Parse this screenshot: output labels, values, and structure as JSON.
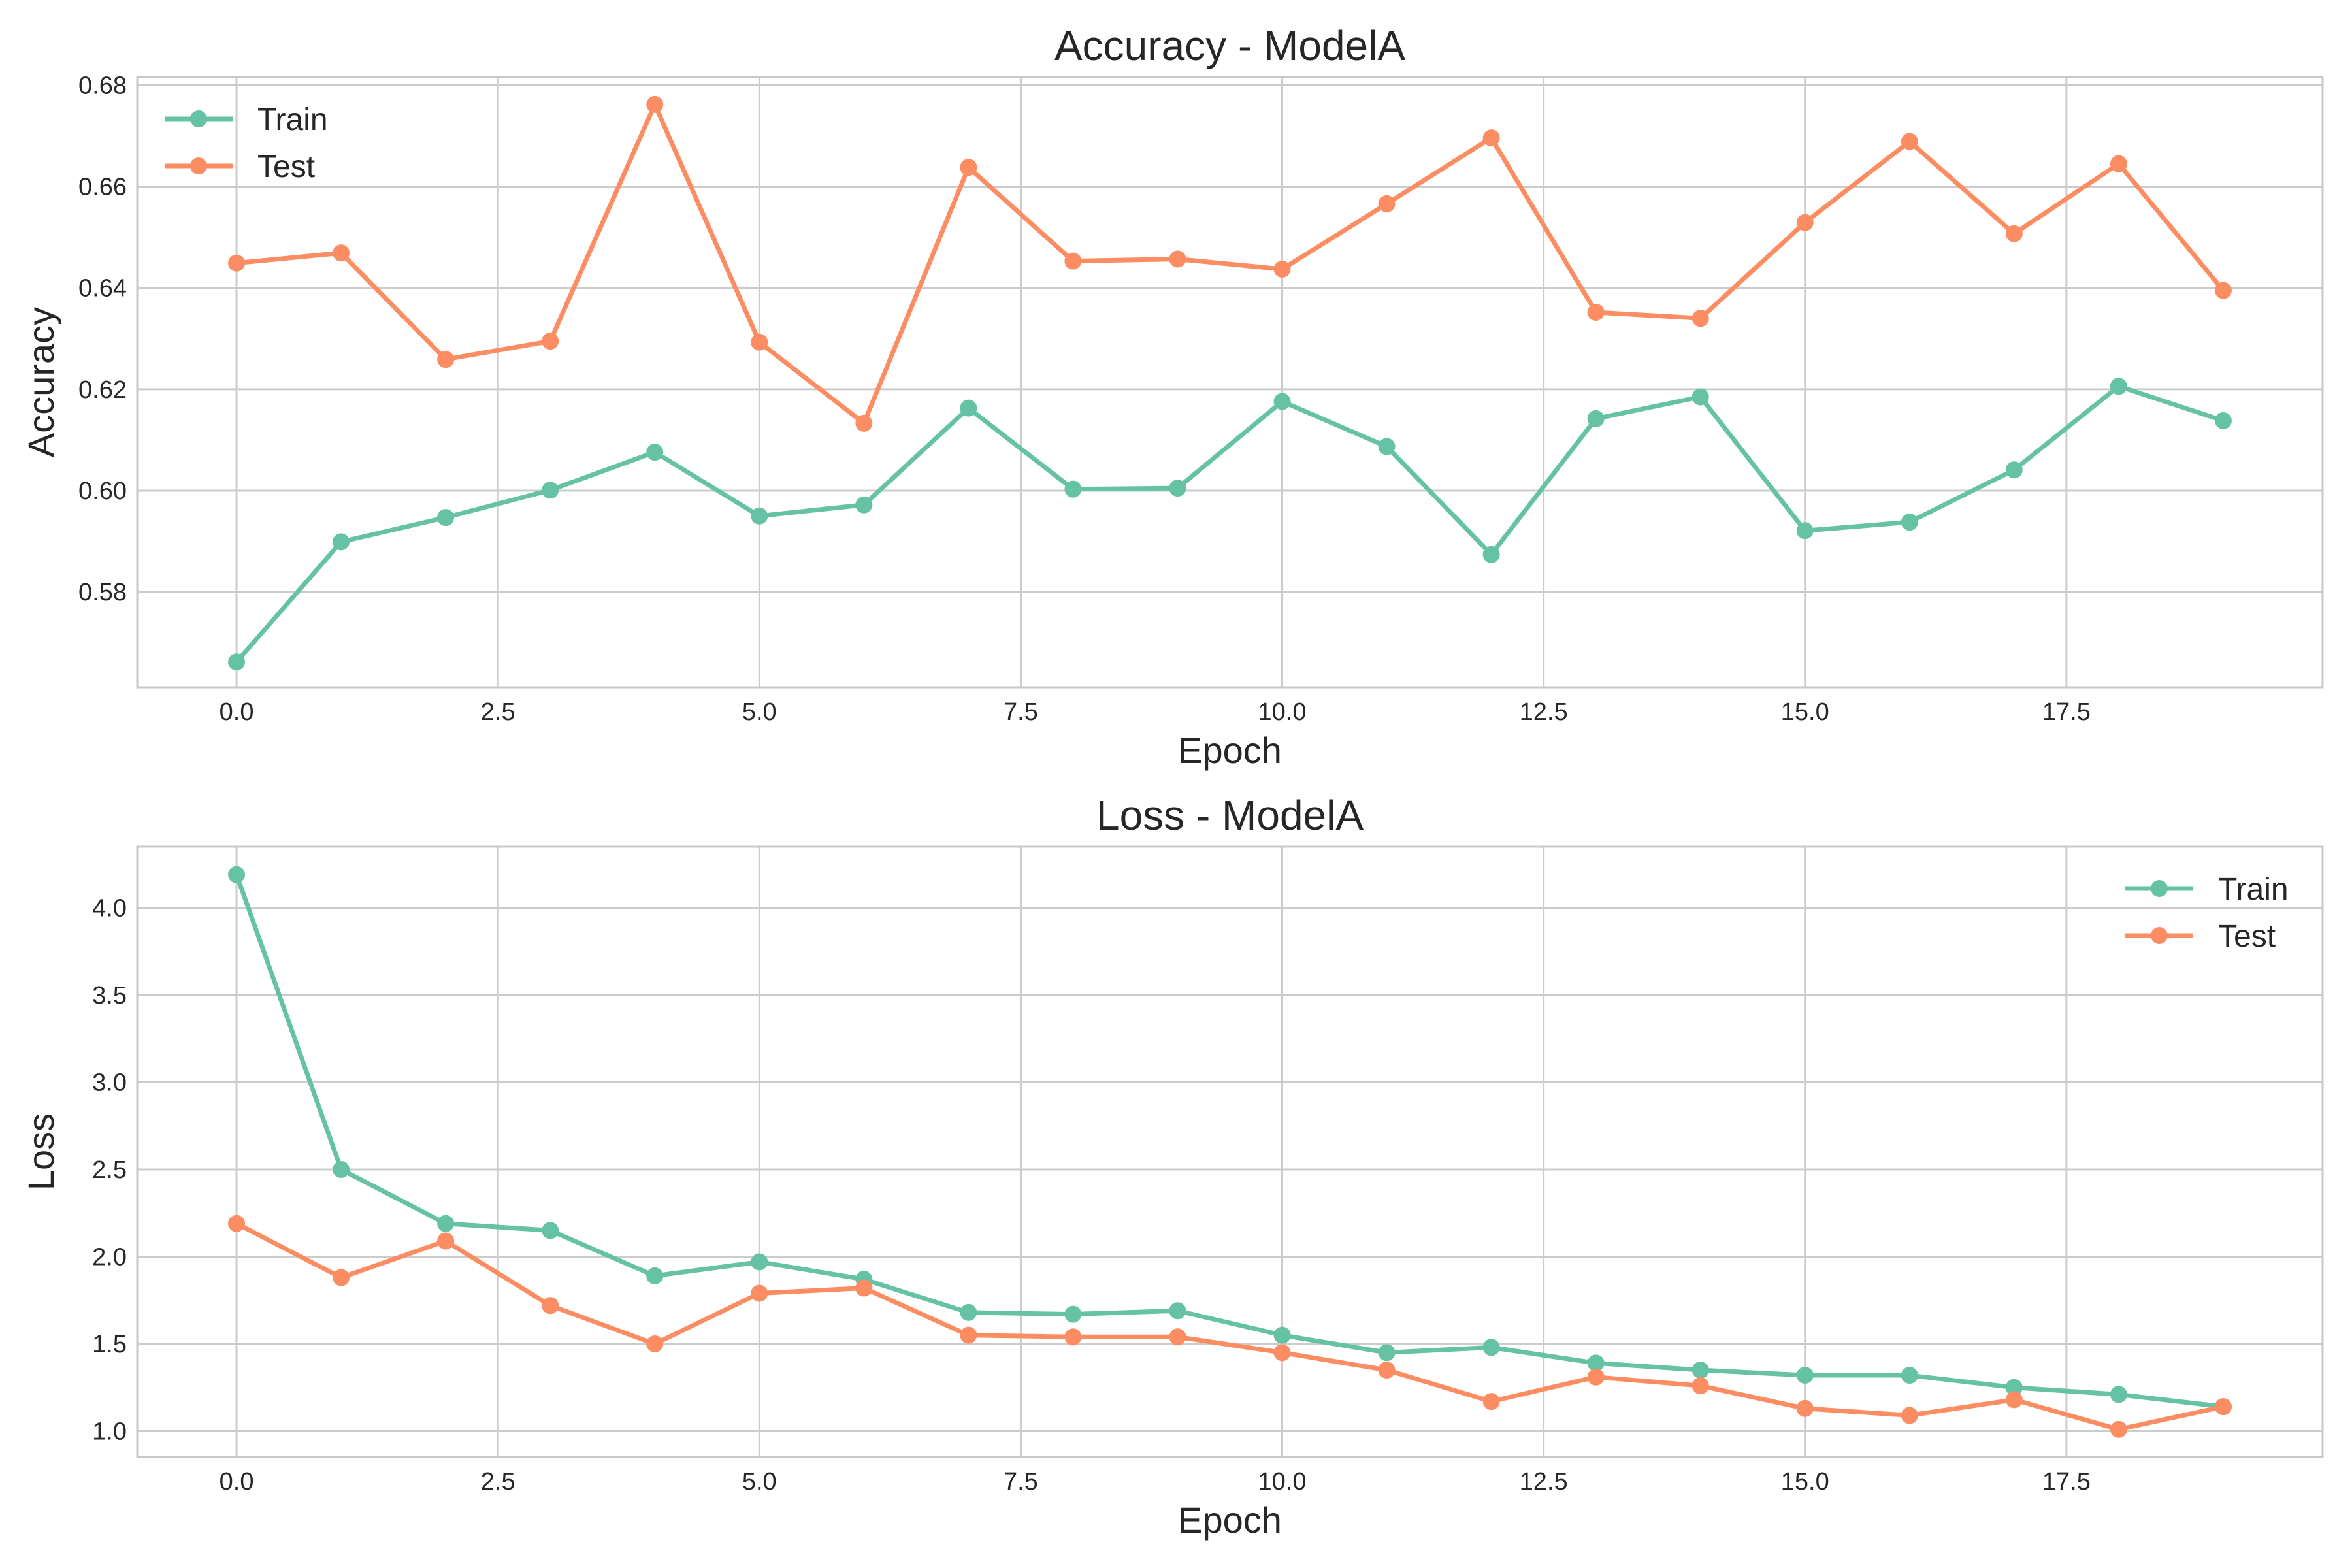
{
  "colors": {
    "train": "#66c2a5",
    "test": "#fc8d62",
    "grid": "#cccccc",
    "frame": "#c8c8c8",
    "text": "#262626"
  },
  "chart_data": [
    {
      "type": "line",
      "title": "Accuracy - ModelA",
      "xlabel": "Epoch",
      "ylabel": "Accuracy",
      "xlim": [
        -0.95,
        19.95
      ],
      "ylim": [
        0.5612,
        0.6816
      ],
      "xticks": [
        0,
        2.5,
        5,
        7.5,
        10,
        12.5,
        15,
        17.5
      ],
      "xtick_labels": [
        "0.0",
        "2.5",
        "5.0",
        "7.5",
        "10.0",
        "12.5",
        "15.0",
        "17.5"
      ],
      "yticks": [
        0.58,
        0.6,
        0.62,
        0.64,
        0.66,
        0.68
      ],
      "ytick_labels": [
        "0.58",
        "0.60",
        "0.62",
        "0.64",
        "0.66",
        "0.68"
      ],
      "grid": true,
      "legend": "upper-left",
      "x": [
        0,
        1,
        2,
        3,
        4,
        5,
        6,
        7,
        8,
        9,
        10,
        11,
        12,
        13,
        14,
        15,
        16,
        17,
        18,
        19
      ],
      "series": [
        {
          "name": "Train",
          "values": [
            0.5662,
            0.5899,
            0.5947,
            0.6001,
            0.6076,
            0.595,
            0.5972,
            0.6163,
            0.6003,
            0.6005,
            0.6176,
            0.6087,
            0.5874,
            0.6142,
            0.6185,
            0.5921,
            0.5938,
            0.6041,
            0.6206,
            0.6138
          ]
        },
        {
          "name": "Test",
          "values": [
            0.6449,
            0.6469,
            0.6259,
            0.6295,
            0.6762,
            0.6293,
            0.6133,
            0.6638,
            0.6453,
            0.6457,
            0.6437,
            0.6566,
            0.6696,
            0.6352,
            0.634,
            0.6529,
            0.6689,
            0.6507,
            0.6645,
            0.6395
          ]
        }
      ]
    },
    {
      "type": "line",
      "title": "Loss - ModelA",
      "xlabel": "Epoch",
      "ylabel": "Loss",
      "xlim": [
        -0.95,
        19.95
      ],
      "ylim": [
        0.852,
        4.35
      ],
      "xticks": [
        0,
        2.5,
        5,
        7.5,
        10,
        12.5,
        15,
        17.5
      ],
      "xtick_labels": [
        "0.0",
        "2.5",
        "5.0",
        "7.5",
        "10.0",
        "12.5",
        "15.0",
        "17.5"
      ],
      "yticks": [
        1.0,
        1.5,
        2.0,
        2.5,
        3.0,
        3.5,
        4.0
      ],
      "ytick_labels": [
        "1.0",
        "1.5",
        "2.0",
        "2.5",
        "3.0",
        "3.5",
        "4.0"
      ],
      "grid": true,
      "legend": "upper-right",
      "x": [
        0,
        1,
        2,
        3,
        4,
        5,
        6,
        7,
        8,
        9,
        10,
        11,
        12,
        13,
        14,
        15,
        16,
        17,
        18,
        19
      ],
      "series": [
        {
          "name": "Train",
          "values": [
            4.19,
            2.5,
            2.19,
            2.15,
            1.89,
            1.97,
            1.87,
            1.68,
            1.67,
            1.69,
            1.55,
            1.45,
            1.48,
            1.39,
            1.35,
            1.32,
            1.32,
            1.25,
            1.21,
            1.14
          ]
        },
        {
          "name": "Test",
          "values": [
            2.19,
            1.88,
            2.09,
            1.72,
            1.5,
            1.79,
            1.82,
            1.55,
            1.54,
            1.54,
            1.45,
            1.35,
            1.17,
            1.31,
            1.26,
            1.13,
            1.09,
            1.18,
            1.01,
            1.14
          ]
        }
      ]
    }
  ]
}
